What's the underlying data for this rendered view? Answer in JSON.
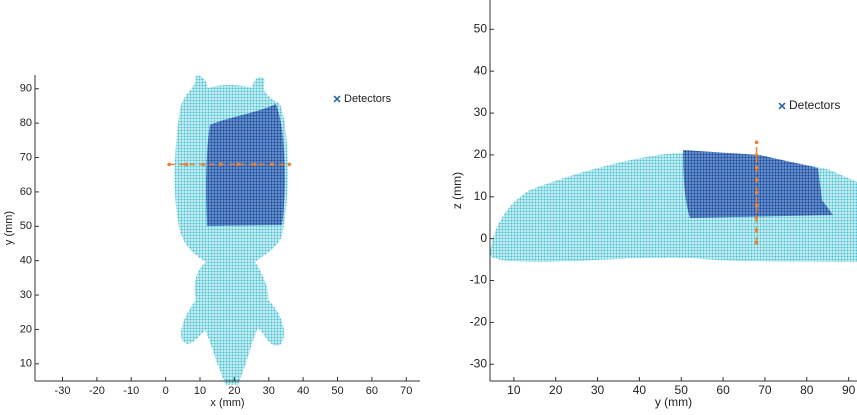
{
  "chart_data": [
    {
      "type": "scatter",
      "xlabel": "x (mm)",
      "ylabel": "y (mm)",
      "xlim": [
        -38,
        74
      ],
      "ylim": [
        5,
        94
      ],
      "xticks": [
        -30,
        -20,
        -10,
        0,
        10,
        20,
        30,
        40,
        50,
        60,
        70
      ],
      "yticks": [
        10,
        20,
        30,
        40,
        50,
        60,
        70,
        80,
        90
      ],
      "legend": "upper right",
      "legend_marker_color": "#1f5fa0",
      "series": [
        {
          "name": "Detectors",
          "color": "#e8823a",
          "x": [
            1,
            6,
            11,
            16,
            21,
            26,
            31,
            36
          ],
          "values": [
            68,
            68,
            68,
            68,
            68,
            68,
            68,
            68
          ]
        }
      ]
    },
    {
      "type": "scatter",
      "xlabel": "y (mm)",
      "ylabel": "z (mm)",
      "xlim": [
        4.3,
        92
      ],
      "ylim": [
        -34,
        57
      ],
      "xticks": [
        10,
        20,
        30,
        40,
        50,
        60,
        70,
        80,
        90
      ],
      "yticks": [
        -30,
        -20,
        -10,
        0,
        10,
        20,
        30,
        40,
        50
      ],
      "legend": "upper right",
      "legend_marker_color": "#1f5fa0",
      "series": [
        {
          "name": "Detectors",
          "color": "#e8823a",
          "x": [
            68,
            68,
            68,
            68,
            68,
            68,
            68,
            68,
            68
          ],
          "values": [
            -1,
            2,
            5,
            8,
            11,
            14,
            17,
            20,
            23
          ]
        }
      ]
    }
  ]
}
